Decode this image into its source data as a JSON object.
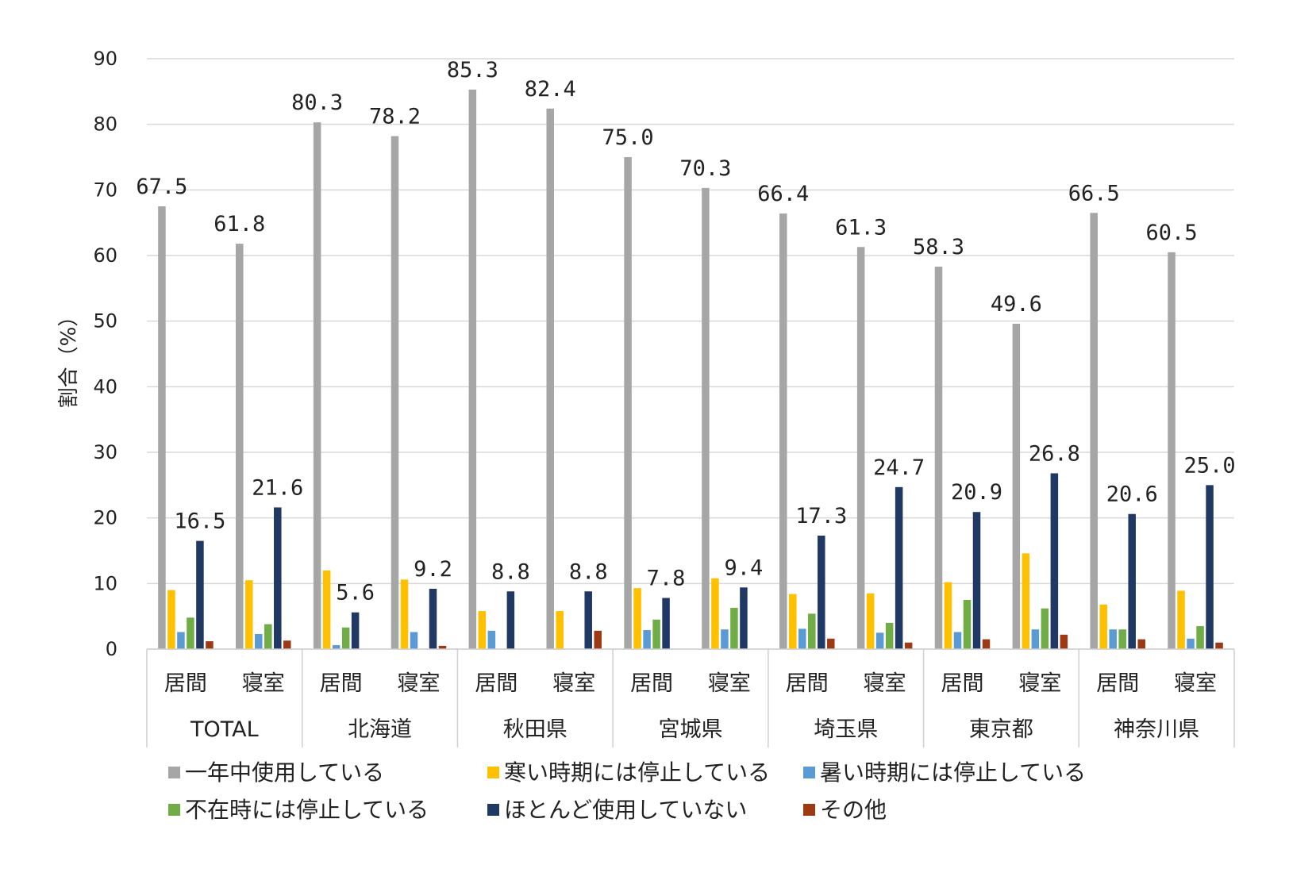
{
  "chart_data": {
    "type": "bar",
    "title": "",
    "xlabel": "",
    "ylabel": "割合（%）",
    "ylim": [
      0,
      90
    ],
    "yticks": [
      0,
      10,
      20,
      30,
      40,
      50,
      60,
      70,
      80,
      90
    ],
    "grid": true,
    "legend_position": "bottom",
    "groups": [
      "TOTAL",
      "北海道",
      "秋田県",
      "宮城県",
      "埼玉県",
      "東京都",
      "神奈川県"
    ],
    "rooms": [
      "居間",
      "寝室"
    ],
    "categories": [
      "TOTAL 居間",
      "TOTAL 寝室",
      "北海道 居間",
      "北海道 寝室",
      "秋田県 居間",
      "秋田県 寝室",
      "宮城県 居間",
      "宮城県 寝室",
      "埼玉県 居間",
      "埼玉県 寝室",
      "東京都 居間",
      "東京都 寝室",
      "神奈川県 居間",
      "神奈川県 寝室"
    ],
    "series": [
      {
        "name": "一年中使用している",
        "color": "#a6a6a6",
        "values": [
          67.5,
          61.8,
          80.3,
          78.2,
          85.3,
          82.4,
          75.0,
          70.3,
          66.4,
          61.3,
          58.3,
          49.6,
          66.5,
          60.5
        ],
        "labels": [
          "67.5",
          "61.8",
          "80.3",
          "78.2",
          "85.3",
          "82.4",
          "75.0",
          "70.3",
          "66.4",
          "61.3",
          "58.3",
          "49.6",
          "66.5",
          "60.5"
        ]
      },
      {
        "name": "寒い時期には停止している",
        "color": "#ffc000",
        "values": [
          9.0,
          10.5,
          12.0,
          10.6,
          5.8,
          5.8,
          9.3,
          10.8,
          8.4,
          8.5,
          10.2,
          14.6,
          6.8,
          8.9
        ],
        "labels": null
      },
      {
        "name": "暑い時期には停止している",
        "color": "#5b9bd5",
        "values": [
          2.6,
          2.3,
          0.6,
          2.6,
          2.8,
          0.0,
          2.9,
          3.0,
          3.1,
          2.5,
          2.6,
          3.0,
          3.0,
          1.6
        ],
        "labels": null
      },
      {
        "name": "不在時には停止している",
        "color": "#70ad47",
        "values": [
          4.8,
          3.8,
          3.3,
          0.0,
          0.0,
          0.0,
          4.5,
          6.3,
          5.4,
          4.0,
          7.5,
          6.2,
          3.0,
          3.5
        ],
        "labels": null
      },
      {
        "name": "ほとんど使用していない",
        "color": "#1f3864",
        "values": [
          16.5,
          21.6,
          5.6,
          9.2,
          8.8,
          8.8,
          7.8,
          9.4,
          17.3,
          24.7,
          20.9,
          26.8,
          20.6,
          25.0
        ],
        "labels": [
          "16.5",
          "21.6",
          "5.6",
          "9.2",
          "8.8",
          "8.8",
          "7.8",
          "9.4",
          "17.3",
          "24.7",
          "20.9",
          "26.8",
          "20.6",
          "25.0"
        ]
      },
      {
        "name": "その他",
        "color": "#9e3a13",
        "values": [
          1.2,
          1.3,
          0.0,
          0.5,
          0.0,
          2.8,
          0.0,
          0.0,
          1.6,
          1.0,
          1.5,
          2.2,
          1.5,
          1.0
        ],
        "labels": null
      }
    ]
  }
}
